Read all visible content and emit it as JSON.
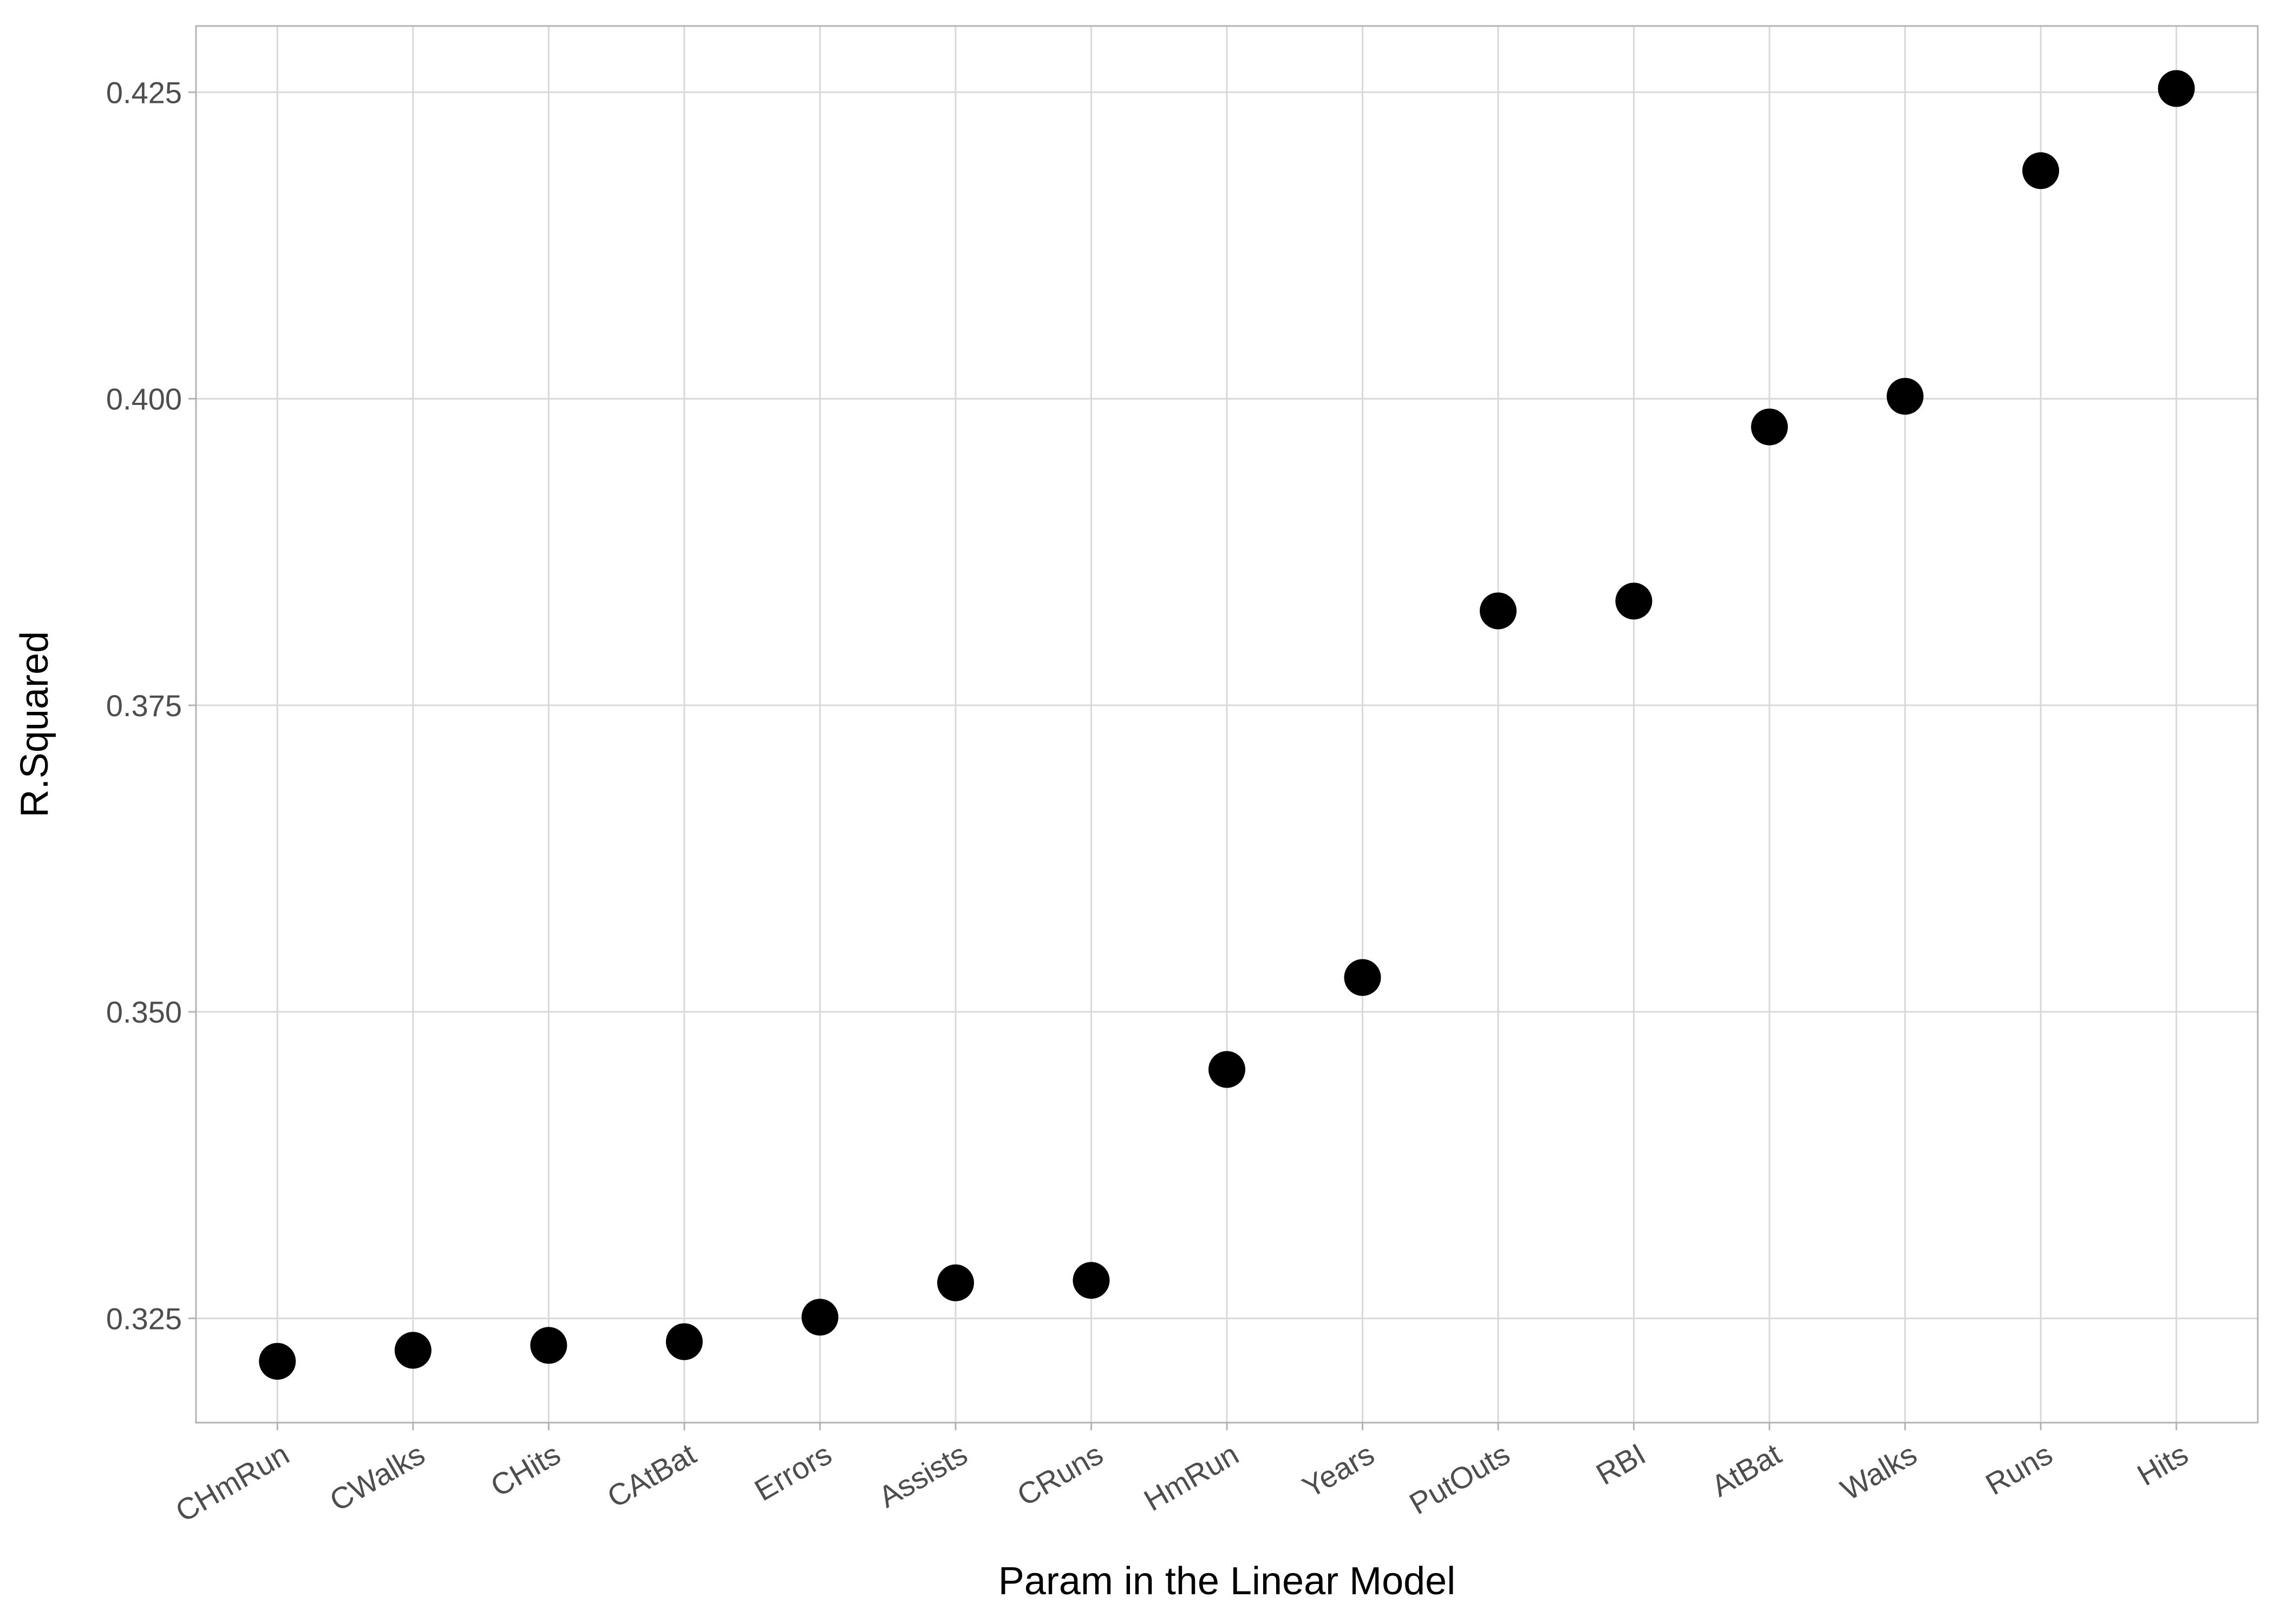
{
  "chart_data": {
    "type": "scatter",
    "title": "",
    "xlabel": "Param in the Linear Model",
    "ylabel": "R.Squared",
    "categories": [
      "CHmRun",
      "CWalks",
      "CHits",
      "CAtBat",
      "Errors",
      "Assists",
      "CRuns",
      "HmRun",
      "Years",
      "PutOuts",
      "RBI",
      "AtBat",
      "Walks",
      "Runs",
      "Hits"
    ],
    "series": [
      {
        "values": [
          0.3215,
          0.3224,
          0.3228,
          0.3231,
          0.3251,
          0.3279,
          0.3281,
          0.3453,
          0.3528,
          0.3827,
          0.3835,
          0.3977,
          0.4002,
          0.4186,
          0.4253
        ]
      }
    ],
    "yticks": [
      "0.325",
      "0.350",
      "0.375",
      "0.400",
      "0.425"
    ],
    "ylim": [
      0.3165,
      0.4304
    ],
    "grid": true,
    "legend": "none",
    "colors": {
      "point": "#000000",
      "grid": "#d9d9d9",
      "panel_border": "#b3b3b3",
      "tick_text": "#4d4d4d",
      "axis_title": "#000000"
    }
  }
}
